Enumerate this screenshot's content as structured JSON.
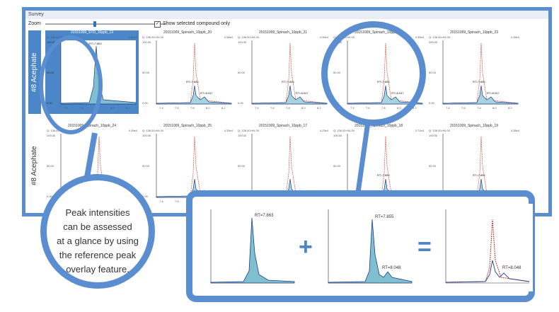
{
  "window": {
    "title": "Survey"
  },
  "toolbar": {
    "zoom_label": "Zoom",
    "show_selected_label": "Show selected compound only",
    "show_selected_checked": true
  },
  "rows": [
    {
      "label": "#8 Acephate",
      "panels": [
        {
          "title": "20151009_STD_10ppb_13",
          "info": "Q: 136.00>94.00",
          "intensity": "1.86e4",
          "rt": "RT=7.863",
          "selected": true
        },
        {
          "title": "20151009_Spinach_10ppb_20",
          "info": "Q: 136.00>94.00",
          "intensity": "4.36e4",
          "rt": "RT=7.855",
          "rt2": "RT=8.047"
        },
        {
          "title": "20151009_Spinach_10ppb_21",
          "info": "Q: 136.00>94.00",
          "intensity": "4.39e4",
          "rt": "RT=7.855",
          "rt2": "RT=8.047"
        },
        {
          "title": "20151009_Spinach_10ppb_22",
          "info": "Q: 136.00>94.00",
          "intensity": "4.35e4",
          "rt": "RT=7.855",
          "rt2": "RT=8.047"
        },
        {
          "title": "20151009_Spinach_10ppb_23",
          "info": "Q: 136.00>94.00",
          "intensity": "4.35e4",
          "rt": "RT=7.855",
          "rt2": "RT=8.047"
        }
      ]
    },
    {
      "label": "#8 Acephate",
      "panels": [
        {
          "title": "20151009_Spinach_10ppb_24",
          "info": "Q: 136.00>94.00",
          "intensity": "4.39e4"
        },
        {
          "title": "20151009_Spinach_10ppb_25",
          "info": "Q: 136.00>94.00",
          "intensity": "4.35e4"
        },
        {
          "title": "20151009_Spinach_10ppb_17",
          "info": "Q: 136.00>94.00",
          "intensity": "4.23e4"
        },
        {
          "title": "20151009_Spinach_10ppb_18",
          "info": "Q: 136.00>94.00",
          "intensity": "3.71e4",
          "rt": "RT=7.855"
        },
        {
          "title": "20151009_Spinach_10ppb_19",
          "info": "Q: 136.00>94.00",
          "intensity": "4.35e4",
          "rt": "RT=7.855"
        }
      ]
    }
  ],
  "axis": {
    "y_ticks": [
      "100.00",
      "50.00",
      "0.00"
    ],
    "y_unit": "%",
    "x_ticks": [
      "7.4",
      "7.6",
      "7.8",
      "8.0",
      "8.2"
    ]
  },
  "callout": {
    "lines": [
      "Peak intensities",
      "can be assessed",
      "at a glance by using",
      "the reference peak",
      "overlay feature."
    ]
  },
  "inset": {
    "plus": "+",
    "equals": "=",
    "rt_a": "RT=7.863",
    "rt_b": "RT=7.855",
    "rt_b2": "RT=8.048",
    "rt_c": "RT=8.048"
  },
  "colors": {
    "accent": "#5b8ed0",
    "selected_bg": "#4a86c8",
    "trace_blue": "#1f3f8a",
    "overlay_red": "#c0392b",
    "fill": "#7fbfd0"
  }
}
